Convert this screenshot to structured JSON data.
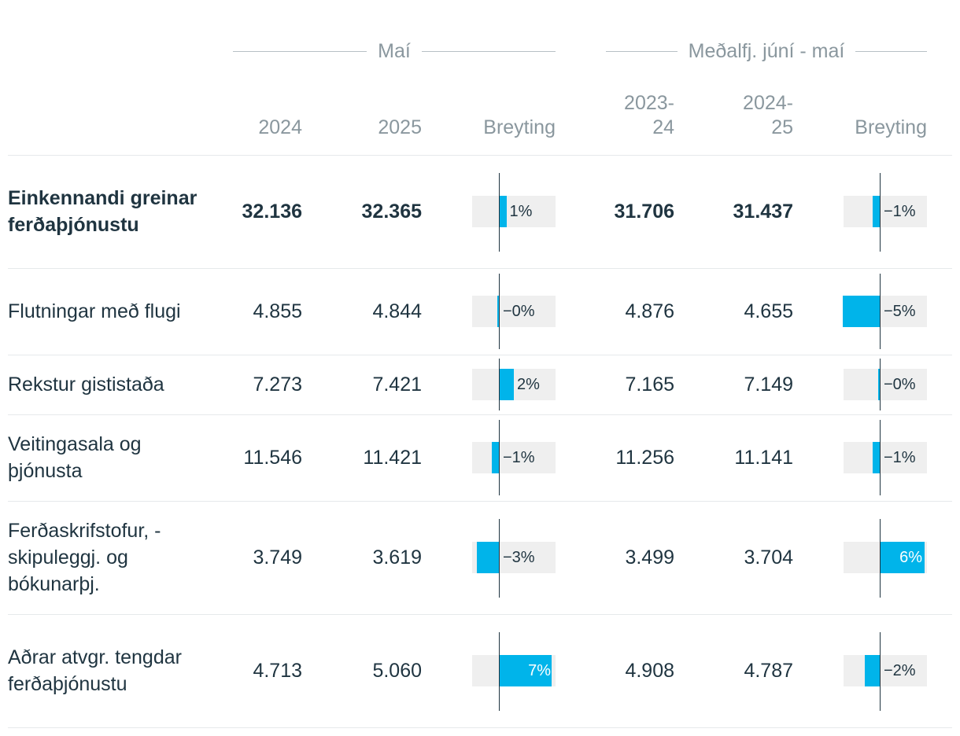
{
  "chart_data": {
    "type": "table",
    "groups": [
      {
        "label": "Maí",
        "columns": [
          "2024",
          "2025",
          "Breyting"
        ]
      },
      {
        "label": "Meðalfj. júní - maí",
        "columns": [
          "2023-\n24",
          "2024-\n25",
          "Breyting"
        ]
      }
    ],
    "rows": [
      {
        "label": "Einkennandi greinar ferðaþjónustu",
        "bold": true,
        "may_2024": "32.136",
        "may_2025": "32.365",
        "may_change": 1,
        "may_change_label": "1%",
        "avg_2023_24": "31.706",
        "avg_2024_25": "31.437",
        "avg_change": -1,
        "avg_change_label": "−1%"
      },
      {
        "label": "Flutningar með flugi",
        "bold": false,
        "may_2024": "4.855",
        "may_2025": "4.844",
        "may_change": -0.2,
        "may_change_label": "−0%",
        "avg_2023_24": "4.876",
        "avg_2024_25": "4.655",
        "avg_change": -5,
        "avg_change_label": "−5%"
      },
      {
        "label": "Rekstur gististaða",
        "bold": false,
        "may_2024": "7.273",
        "may_2025": "7.421",
        "may_change": 2,
        "may_change_label": "2%",
        "avg_2023_24": "7.165",
        "avg_2024_25": "7.149",
        "avg_change": -0.2,
        "avg_change_label": "−0%"
      },
      {
        "label": "Veitingasala og þjónusta",
        "bold": false,
        "may_2024": "11.546",
        "may_2025": "11.421",
        "may_change": -1,
        "may_change_label": "−1%",
        "avg_2023_24": "11.256",
        "avg_2024_25": "11.141",
        "avg_change": -1,
        "avg_change_label": "−1%"
      },
      {
        "label": "Ferðaskrifstofur, -skipuleggj. og bókunarþj.",
        "bold": false,
        "may_2024": "3.749",
        "may_2025": "3.619",
        "may_change": -3,
        "may_change_label": "−3%",
        "avg_2023_24": "3.499",
        "avg_2024_25": "3.704",
        "avg_change": 6,
        "avg_change_label": "6%"
      },
      {
        "label": "Aðrar atvgr. tengdar ferðaþjónustu",
        "bold": false,
        "may_2024": "4.713",
        "may_2025": "5.060",
        "may_change": 7,
        "may_change_label": "7%",
        "avg_2023_24": "4.908",
        "avg_2024_25": "4.787",
        "avg_change": -2,
        "avg_change_label": "−2%"
      }
    ],
    "bar_color": "#00b4ea",
    "bar_background": "#efefef",
    "change_range": [
      -5,
      7
    ]
  }
}
